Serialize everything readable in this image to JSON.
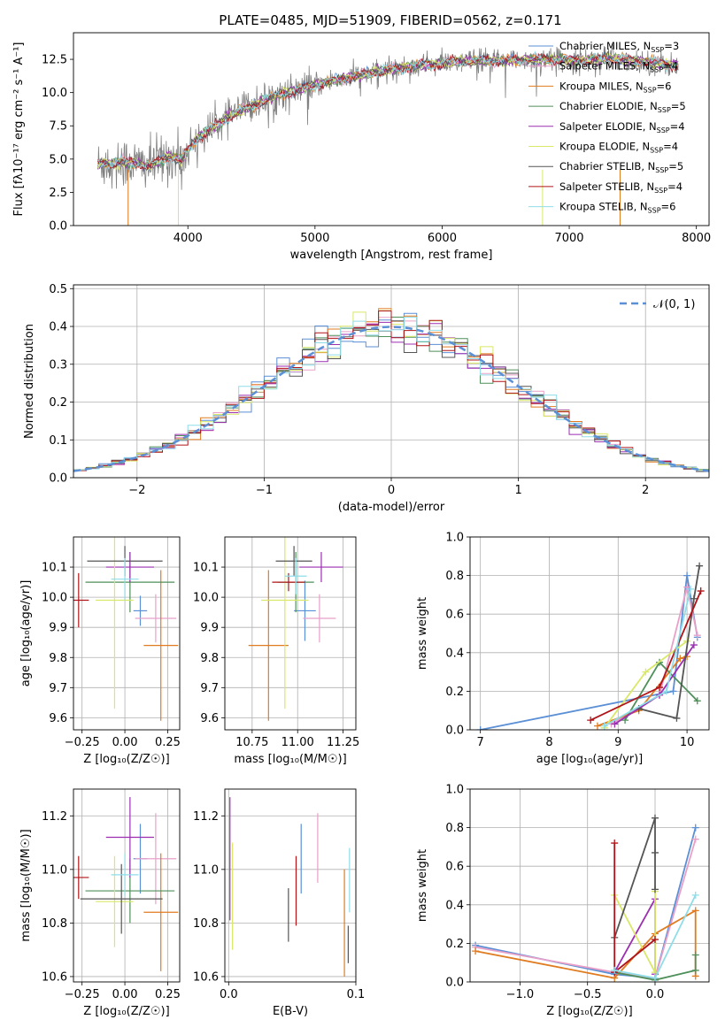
{
  "figure": {
    "title": "PLATE=0485, MJD=51909, FIBERID=0562, z=0.171"
  },
  "series_styles": [
    {
      "name": "Chabrier MILES",
      "nssp": "3",
      "color": "#5b8fd6"
    },
    {
      "name": "Salpeter MILES",
      "nssp": "4",
      "color": "#e8a0c8"
    },
    {
      "name": "Kroupa MILES",
      "nssp": "6",
      "color": "#e07b20"
    },
    {
      "name": "Chabrier ELODIE",
      "nssp": "5",
      "color": "#4f8f5a"
    },
    {
      "name": "Salpeter ELODIE",
      "nssp": "4",
      "color": "#9b2fb0"
    },
    {
      "name": "Kroupa ELODIE",
      "nssp": "4",
      "color": "#d9e868"
    },
    {
      "name": "Chabrier STELIB",
      "nssp": "5",
      "color": "#555555"
    },
    {
      "name": "Salpeter STELIB",
      "nssp": "4",
      "color": "#b01418"
    },
    {
      "name": "Kroupa STELIB",
      "nssp": "6",
      "color": "#8fdde8"
    }
  ],
  "chart_data": [
    {
      "id": "spectrum",
      "type": "line",
      "title": "PLATE=0485, MJD=51909, FIBERID=0562, z=0.171",
      "xlabel": "wavelength [Angstrom, rest frame]",
      "ylabel": "Flux [fλ10⁻¹⁷ erg cm⁻² s⁻¹ A⁻¹]",
      "xlim": [
        3100,
        8100
      ],
      "ylim": [
        0,
        14.5
      ],
      "xticks": [
        4000,
        5000,
        6000,
        7000,
        8000
      ],
      "yticks": [
        0.0,
        2.5,
        5.0,
        7.5,
        10.0,
        12.5
      ],
      "grid": false,
      "legend": "top-right",
      "data_color": "#808080",
      "continuum": [
        [
          3290,
          4.6
        ],
        [
          3500,
          4.8
        ],
        [
          3700,
          4.5
        ],
        [
          3850,
          5.2
        ],
        [
          3950,
          4.9
        ],
        [
          4050,
          6.4
        ],
        [
          4200,
          7.4
        ],
        [
          4350,
          8.3
        ],
        [
          4500,
          9.0
        ],
        [
          4700,
          9.8
        ],
        [
          4900,
          10.3
        ],
        [
          5100,
          10.8
        ],
        [
          5300,
          11.2
        ],
        [
          5500,
          11.6
        ],
        [
          5700,
          11.9
        ],
        [
          5900,
          12.1
        ],
        [
          6100,
          12.3
        ],
        [
          6300,
          12.4
        ],
        [
          6500,
          12.4
        ],
        [
          6700,
          12.5
        ],
        [
          6900,
          12.5
        ],
        [
          7100,
          12.4
        ],
        [
          7300,
          12.6
        ],
        [
          7500,
          12.4
        ],
        [
          7700,
          12.2
        ],
        [
          7860,
          12.0
        ]
      ],
      "notes_points": []
    },
    {
      "id": "residual_hist",
      "type": "line",
      "xlabel": "(data-model)/error",
      "ylabel": "Normed distribution",
      "xlim": [
        -2.5,
        2.5
      ],
      "ylim": [
        0,
        0.51
      ],
      "xticks": [
        -2,
        -1,
        0,
        1,
        2
      ],
      "yticks": [
        0.0,
        0.1,
        0.2,
        0.3,
        0.4,
        0.5
      ],
      "grid": true,
      "legend": "top-right",
      "legend_label": "𝒩(0, 1)",
      "gaussian": {
        "mean": 0,
        "sigma": 1,
        "color": "#5b8fd6"
      },
      "bin_width": 0.1
    },
    {
      "id": "age_vs_Z",
      "type": "scatter",
      "xlabel": "Z [log₁₀(Z/Z☉)]",
      "ylabel": "age  [log₁₀(age/yr)]",
      "xlim": [
        -0.3,
        0.32
      ],
      "ylim": [
        9.56,
        10.2
      ],
      "xticks": [
        -0.25,
        0.0,
        0.25
      ],
      "yticks": [
        9.6,
        9.7,
        9.8,
        9.9,
        10.0,
        10.1
      ],
      "grid": true,
      "points": [
        {
          "x": 0.09,
          "y": 9.955,
          "xerr": 0.04,
          "yerr": 0.05,
          "series": "Chabrier MILES"
        },
        {
          "x": 0.18,
          "y": 9.93,
          "xerr": 0.12,
          "yerr": 0.08,
          "series": "Salpeter MILES"
        },
        {
          "x": 0.21,
          "y": 9.84,
          "xerr": 0.1,
          "yerr": 0.25,
          "series": "Kroupa MILES"
        },
        {
          "x": 0.03,
          "y": 10.05,
          "xerr": 0.26,
          "yerr": 0.1,
          "series": "Chabrier ELODIE"
        },
        {
          "x": 0.03,
          "y": 10.1,
          "xerr": 0.14,
          "yerr": 0.05,
          "series": "Salpeter ELODIE"
        },
        {
          "x": -0.06,
          "y": 9.99,
          "xerr": 0.11,
          "yerr": 0.36,
          "series": "Kroupa ELODIE"
        },
        {
          "x": 0.0,
          "y": 10.12,
          "xerr": 0.22,
          "yerr": 0.05,
          "series": "Chabrier STELIB"
        },
        {
          "x": -0.27,
          "y": 9.99,
          "xerr": 0.06,
          "yerr": 0.09,
          "series": "Salpeter STELIB"
        },
        {
          "x": 0.0,
          "y": 10.06,
          "xerr": 0.08,
          "yerr": 0.07,
          "series": "Kroupa STELIB"
        }
      ]
    },
    {
      "id": "age_vs_mass",
      "type": "scatter",
      "xlabel": "mass [log₁₀(M/M☉)]",
      "ylabel": "",
      "xlim": [
        10.6,
        11.32
      ],
      "ylim": [
        9.56,
        10.2
      ],
      "xticks": [
        10.75,
        11.0,
        11.25
      ],
      "yticks": [
        9.6,
        9.7,
        9.8,
        9.9,
        10.0,
        10.1
      ],
      "grid": true,
      "points": [
        {
          "x": 11.04,
          "y": 9.955,
          "xerr": 0.06,
          "yerr": 0.1,
          "series": "Chabrier MILES"
        },
        {
          "x": 11.12,
          "y": 9.93,
          "xerr": 0.09,
          "yerr": 0.08,
          "series": "Salpeter MILES"
        },
        {
          "x": 10.84,
          "y": 9.84,
          "xerr": 0.11,
          "yerr": 0.25,
          "series": "Kroupa MILES"
        },
        {
          "x": 10.99,
          "y": 10.05,
          "xerr": 0.1,
          "yerr": 0.1,
          "series": "Chabrier ELODIE"
        },
        {
          "x": 11.13,
          "y": 10.1,
          "xerr": 0.12,
          "yerr": 0.05,
          "series": "Salpeter ELODIE"
        },
        {
          "x": 10.93,
          "y": 9.99,
          "xerr": 0.13,
          "yerr": 0.36,
          "series": "Kroupa ELODIE"
        },
        {
          "x": 10.98,
          "y": 10.12,
          "xerr": 0.1,
          "yerr": 0.05,
          "series": "Chabrier STELIB"
        },
        {
          "x": 10.95,
          "y": 10.05,
          "xerr": 0.09,
          "yerr": 0.03,
          "series": "Salpeter STELIB"
        },
        {
          "x": 10.99,
          "y": 10.07,
          "xerr": 0.06,
          "yerr": 0.06,
          "series": "Kroupa STELIB"
        }
      ]
    },
    {
      "id": "weight_vs_age",
      "type": "line",
      "xlabel": "age  [log₁₀(age/yr)]",
      "ylabel": "mass weight",
      "xlim": [
        6.85,
        10.32
      ],
      "ylim": [
        0,
        1.0
      ],
      "xticks": [
        7,
        8,
        9,
        10
      ],
      "yticks": [
        0.0,
        0.2,
        0.4,
        0.6,
        0.8,
        1.0
      ],
      "grid": true,
      "series": [
        {
          "name": "Chabrier MILES",
          "points": [
            [
              7.0,
              0.0
            ],
            [
              9.8,
              0.2
            ],
            [
              10.0,
              0.8
            ],
            [
              10.15,
              0.48
            ]
          ]
        },
        {
          "name": "Salpeter MILES",
          "points": [
            [
              8.9,
              0.03
            ],
            [
              9.6,
              0.18
            ],
            [
              10.0,
              0.74
            ],
            [
              10.15,
              0.49
            ]
          ]
        },
        {
          "name": "Kroupa MILES",
          "points": [
            [
              8.7,
              0.02
            ],
            [
              9.3,
              0.1
            ],
            [
              9.9,
              0.37
            ],
            [
              10.0,
              0.38
            ]
          ]
        },
        {
          "name": "Chabrier ELODIE",
          "points": [
            [
              9.1,
              0.05
            ],
            [
              9.6,
              0.35
            ],
            [
              10.15,
              0.15
            ]
          ]
        },
        {
          "name": "Salpeter ELODIE",
          "points": [
            [
              8.95,
              0.03
            ],
            [
              9.6,
              0.18
            ],
            [
              10.1,
              0.44
            ]
          ]
        },
        {
          "name": "Kroupa ELODIE",
          "points": [
            [
              8.8,
              0.01
            ],
            [
              9.4,
              0.3
            ],
            [
              10.0,
              0.46
            ]
          ]
        },
        {
          "name": "Chabrier STELIB",
          "points": [
            [
              9.3,
              0.11
            ],
            [
              9.85,
              0.06
            ],
            [
              10.1,
              0.68
            ],
            [
              10.18,
              0.85
            ]
          ]
        },
        {
          "name": "Salpeter STELIB",
          "points": [
            [
              8.6,
              0.05
            ],
            [
              9.6,
              0.22
            ],
            [
              10.2,
              0.72
            ]
          ]
        },
        {
          "name": "Kroupa STELIB",
          "points": [
            [
              8.8,
              0.02
            ],
            [
              9.7,
              0.2
            ],
            [
              10.05,
              0.73
            ]
          ]
        }
      ]
    },
    {
      "id": "mass_vs_Z",
      "type": "scatter",
      "xlabel": "Z [log₁₀(Z/Z☉)]",
      "ylabel": "mass [log₁₀(M/M☉)]",
      "xlim": [
        -0.3,
        0.32
      ],
      "ylim": [
        10.58,
        11.3
      ],
      "xticks": [
        -0.25,
        0.0,
        0.25
      ],
      "yticks": [
        10.6,
        10.8,
        11.0,
        11.2
      ],
      "grid": true,
      "points": [
        {
          "x": 0.09,
          "y": 11.04,
          "xerr": 0.04,
          "yerr": 0.13,
          "series": "Chabrier MILES"
        },
        {
          "x": 0.18,
          "y": 11.04,
          "xerr": 0.12,
          "yerr": 0.17,
          "series": "Salpeter MILES"
        },
        {
          "x": 0.21,
          "y": 10.84,
          "xerr": 0.1,
          "yerr": 0.22,
          "series": "Kroupa MILES"
        },
        {
          "x": 0.03,
          "y": 10.92,
          "xerr": 0.26,
          "yerr": 0.12,
          "series": "Chabrier ELODIE"
        },
        {
          "x": 0.03,
          "y": 11.12,
          "xerr": 0.14,
          "yerr": 0.15,
          "series": "Salpeter ELODIE"
        },
        {
          "x": -0.06,
          "y": 10.88,
          "xerr": 0.11,
          "yerr": 0.17,
          "series": "Kroupa ELODIE"
        },
        {
          "x": -0.02,
          "y": 10.89,
          "xerr": 0.24,
          "yerr": 0.13,
          "series": "Chabrier STELIB"
        },
        {
          "x": -0.27,
          "y": 10.97,
          "xerr": 0.06,
          "yerr": 0.08,
          "series": "Salpeter STELIB"
        },
        {
          "x": 0.0,
          "y": 10.98,
          "xerr": 0.08,
          "yerr": 0.08,
          "series": "Kroupa STELIB"
        }
      ]
    },
    {
      "id": "mass_vs_EBV",
      "type": "scatter",
      "xlabel": "E(B-V)",
      "ylabel": "",
      "xlim": [
        -0.003,
        0.1
      ],
      "ylim": [
        10.58,
        11.3
      ],
      "xticks": [
        0.0,
        0.1
      ],
      "yticks": [
        10.6,
        10.8,
        11.0,
        11.2
      ],
      "grid": true,
      "points": [
        {
          "x": 0.057,
          "y": 11.04,
          "yerr": 0.13,
          "series": "Chabrier MILES"
        },
        {
          "x": 0.07,
          "y": 11.08,
          "yerr": 0.13,
          "series": "Salpeter MILES"
        },
        {
          "x": 0.091,
          "y": 10.8,
          "yerr": 0.2,
          "series": "Kroupa MILES"
        },
        {
          "x": 0.001,
          "y": 11.04,
          "yerr": 0.23,
          "series": "Salpeter ELODIE"
        },
        {
          "x": 0.003,
          "y": 10.9,
          "yerr": 0.2,
          "series": "Kroupa ELODIE"
        },
        {
          "x": 0.047,
          "y": 10.83,
          "yerr": 0.1,
          "series": "Chabrier STELIB"
        },
        {
          "x": 0.053,
          "y": 10.92,
          "yerr": 0.13,
          "series": "Salpeter STELIB"
        },
        {
          "x": 0.095,
          "y": 10.96,
          "yerr": 0.12,
          "series": "Kroupa STELIB"
        },
        {
          "x": 0.094,
          "y": 10.72,
          "yerr": 0.07,
          "series": "Chabrier STELIB"
        }
      ]
    },
    {
      "id": "weight_vs_Z",
      "type": "line",
      "xlabel": "Z [log₁₀(Z/Z☉)]",
      "ylabel": "mass weight",
      "xlim": [
        -1.37,
        0.4
      ],
      "ylim": [
        0,
        1.0
      ],
      "xticks": [
        -1.0,
        -0.5,
        0.0
      ],
      "yticks": [
        0.0,
        0.2,
        0.4,
        0.6,
        0.8,
        1.0
      ],
      "grid": true,
      "series": [
        {
          "name": "Chabrier MILES",
          "points": [
            [
              -1.33,
              0.19
            ],
            [
              -0.3,
              0.04
            ],
            [
              0.0,
              0.02
            ],
            [
              0.3,
              0.8
            ]
          ]
        },
        {
          "name": "Salpeter MILES",
          "points": [
            [
              -1.33,
              0.18
            ],
            [
              -0.3,
              0.05
            ],
            [
              0.0,
              0.02
            ],
            [
              0.3,
              0.74
            ]
          ]
        },
        {
          "name": "Kroupa MILES",
          "points": [
            [
              -1.33,
              0.16
            ],
            [
              -0.3,
              0.02
            ],
            [
              0.0,
              0.25
            ],
            [
              0.3,
              0.37
            ],
            [
              0.3,
              0.03
            ]
          ]
        },
        {
          "name": "Chabrier ELODIE",
          "points": [
            [
              -0.3,
              0.05
            ],
            [
              0.0,
              0.01
            ],
            [
              0.3,
              0.06
            ],
            [
              0.3,
              0.14
            ]
          ]
        },
        {
          "name": "Salpeter ELODIE",
          "points": [
            [
              -0.3,
              0.05
            ],
            [
              0.0,
              0.43
            ],
            [
              0.0,
              0.04
            ]
          ]
        },
        {
          "name": "Kroupa ELODIE",
          "points": [
            [
              -0.3,
              0.45
            ],
            [
              0.0,
              0.05
            ],
            [
              0.0,
              0.47
            ]
          ]
        },
        {
          "name": "Chabrier STELIB",
          "points": [
            [
              -0.3,
              0.23
            ],
            [
              0.0,
              0.85
            ],
            [
              0.0,
              0.67
            ],
            [
              0.0,
              0.48
            ]
          ]
        },
        {
          "name": "Salpeter STELIB",
          "points": [
            [
              -0.3,
              0.72
            ],
            [
              -0.3,
              0.05
            ],
            [
              0.0,
              0.22
            ]
          ]
        },
        {
          "name": "Kroupa STELIB",
          "points": [
            [
              -0.3,
              0.06
            ],
            [
              0.0,
              0.02
            ],
            [
              0.3,
              0.45
            ]
          ]
        }
      ]
    }
  ]
}
